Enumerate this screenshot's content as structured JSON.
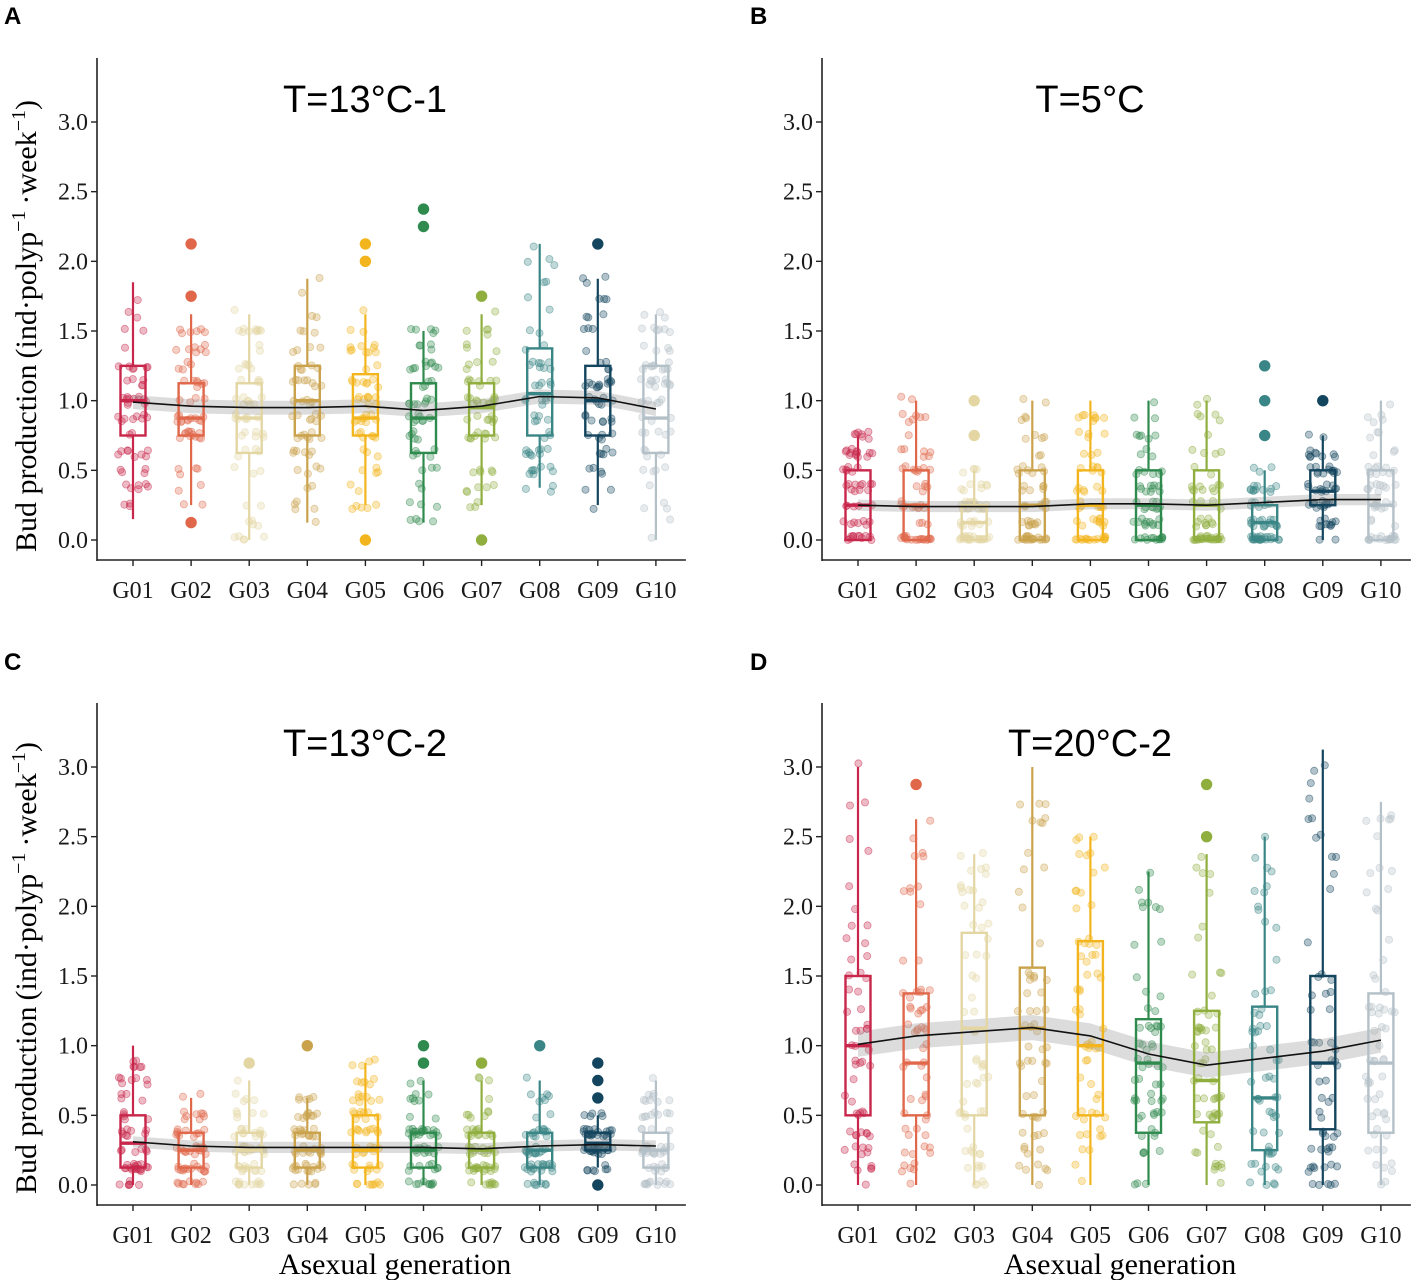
{
  "figure": {
    "ylabel_prefix": "Bud production",
    "ylabel_unit_main": "ind·polyp",
    "ylabel_unit_mid": "·week",
    "ylabel_exponent": "−1",
    "xlabel": "Asexual generation"
  },
  "generation_colors": [
    "#c8264a",
    "#e0674a",
    "#e3d6a3",
    "#c9a24b",
    "#f3b51d",
    "#2f8a4e",
    "#8fae3e",
    "#3a8585",
    "#14455e",
    "#b3c0c7"
  ],
  "chart_data": [
    {
      "panel_label": "A",
      "title": "T=13°C-1",
      "type": "box",
      "categories": [
        "G01",
        "G02",
        "G03",
        "G04",
        "G05",
        "G06",
        "G07",
        "G08",
        "G09",
        "G10"
      ],
      "ylim": [
        -0.1,
        3.45
      ],
      "yticks": [
        "0.0",
        "0.5",
        "1.0",
        "1.5",
        "2.0",
        "2.5",
        "3.0"
      ],
      "boxes": [
        {
          "q1": 0.75,
          "median": 1.0,
          "q3": 1.25,
          "whisker_low": 0.15,
          "whisker_high": 1.85,
          "outliers": []
        },
        {
          "q1": 0.75,
          "median": 0.875,
          "q3": 1.125,
          "whisker_low": 0.25,
          "whisker_high": 1.62,
          "outliers": [
            2.125,
            1.75,
            0.125
          ]
        },
        {
          "q1": 0.625,
          "median": 0.875,
          "q3": 1.125,
          "whisker_low": 0.0,
          "whisker_high": 1.62,
          "outliers": []
        },
        {
          "q1": 0.75,
          "median": 1.0,
          "q3": 1.25,
          "whisker_low": 0.125,
          "whisker_high": 1.875,
          "outliers": []
        },
        {
          "q1": 0.75,
          "median": 0.875,
          "q3": 1.19,
          "whisker_low": 0.25,
          "whisker_high": 1.62,
          "outliers": [
            2.125,
            2.0,
            0.0
          ]
        },
        {
          "q1": 0.625,
          "median": 0.875,
          "q3": 1.125,
          "whisker_low": 0.125,
          "whisker_high": 1.5,
          "outliers": [
            2.375,
            2.25
          ]
        },
        {
          "q1": 0.75,
          "median": 0.95,
          "q3": 1.125,
          "whisker_low": 0.25,
          "whisker_high": 1.62,
          "outliers": [
            1.75,
            0.0
          ]
        },
        {
          "q1": 0.75,
          "median": 1.05,
          "q3": 1.375,
          "whisker_low": 0.375,
          "whisker_high": 2.125,
          "outliers": []
        },
        {
          "q1": 0.75,
          "median": 1.0,
          "q3": 1.25,
          "whisker_low": 0.25,
          "whisker_high": 1.875,
          "outliers": [
            2.125
          ]
        },
        {
          "q1": 0.625,
          "median": 0.875,
          "q3": 1.25,
          "whisker_low": 0.0,
          "whisker_high": 1.62,
          "outliers": []
        }
      ],
      "trend": [
        0.99,
        0.96,
        0.95,
        0.95,
        0.96,
        0.93,
        0.96,
        1.03,
        1.02,
        0.94
      ],
      "trend_band": 0.05
    },
    {
      "panel_label": "B",
      "title": "T=5°C",
      "type": "box",
      "categories": [
        "G01",
        "G02",
        "G03",
        "G04",
        "G05",
        "G06",
        "G07",
        "G08",
        "G09",
        "G10"
      ],
      "ylim": [
        -0.1,
        3.45
      ],
      "yticks": [
        "0.0",
        "0.5",
        "1.0",
        "1.5",
        "2.0",
        "2.5",
        "3.0"
      ],
      "boxes": [
        {
          "q1": 0.0,
          "median": 0.25,
          "q3": 0.5,
          "whisker_low": 0.0,
          "whisker_high": 0.75,
          "outliers": []
        },
        {
          "q1": 0.0,
          "median": 0.25,
          "q3": 0.5,
          "whisker_low": 0.0,
          "whisker_high": 1.0,
          "outliers": []
        },
        {
          "q1": 0.0,
          "median": 0.125,
          "q3": 0.25,
          "whisker_low": 0.0,
          "whisker_high": 0.5,
          "outliers": [
            1.0,
            0.75
          ]
        },
        {
          "q1": 0.0,
          "median": 0.25,
          "q3": 0.5,
          "whisker_low": 0.0,
          "whisker_high": 1.0,
          "outliers": []
        },
        {
          "q1": 0.0,
          "median": 0.25,
          "q3": 0.5,
          "whisker_low": 0.0,
          "whisker_high": 1.0,
          "outliers": []
        },
        {
          "q1": 0.0,
          "median": 0.25,
          "q3": 0.5,
          "whisker_low": 0.0,
          "whisker_high": 1.0,
          "outliers": []
        },
        {
          "q1": 0.0,
          "median": 0.25,
          "q3": 0.5,
          "whisker_low": 0.0,
          "whisker_high": 1.0,
          "outliers": []
        },
        {
          "q1": 0.0,
          "median": 0.125,
          "q3": 0.25,
          "whisker_low": 0.0,
          "whisker_high": 0.5,
          "outliers": [
            1.25,
            1.0,
            0.75
          ]
        },
        {
          "q1": 0.25,
          "median": 0.35,
          "q3": 0.5,
          "whisker_low": 0.0,
          "whisker_high": 0.75,
          "outliers": [
            1.0
          ]
        },
        {
          "q1": 0.0,
          "median": 0.25,
          "q3": 0.5,
          "whisker_low": 0.0,
          "whisker_high": 1.0,
          "outliers": []
        }
      ],
      "trend": [
        0.25,
        0.24,
        0.24,
        0.24,
        0.26,
        0.26,
        0.25,
        0.27,
        0.29,
        0.29
      ],
      "trend_band": 0.04
    },
    {
      "panel_label": "C",
      "title": "T=13°C-2",
      "type": "box",
      "categories": [
        "G01",
        "G02",
        "G03",
        "G04",
        "G05",
        "G06",
        "G07",
        "G08",
        "G09",
        "G10"
      ],
      "ylim": [
        -0.1,
        3.45
      ],
      "yticks": [
        "0.0",
        "0.5",
        "1.0",
        "1.5",
        "2.0",
        "2.5",
        "3.0"
      ],
      "boxes": [
        {
          "q1": 0.125,
          "median": 0.3,
          "q3": 0.5,
          "whisker_low": 0.0,
          "whisker_high": 1.0,
          "outliers": []
        },
        {
          "q1": 0.125,
          "median": 0.25,
          "q3": 0.375,
          "whisker_low": 0.0,
          "whisker_high": 0.625,
          "outliers": []
        },
        {
          "q1": 0.125,
          "median": 0.25,
          "q3": 0.375,
          "whisker_low": 0.0,
          "whisker_high": 0.75,
          "outliers": [
            0.875
          ]
        },
        {
          "q1": 0.125,
          "median": 0.25,
          "q3": 0.375,
          "whisker_low": 0.0,
          "whisker_high": 0.625,
          "outliers": [
            1.0
          ]
        },
        {
          "q1": 0.125,
          "median": 0.25,
          "q3": 0.5,
          "whisker_low": 0.0,
          "whisker_high": 0.875,
          "outliers": []
        },
        {
          "q1": 0.125,
          "median": 0.25,
          "q3": 0.375,
          "whisker_low": 0.0,
          "whisker_high": 0.75,
          "outliers": [
            1.0,
            0.875
          ]
        },
        {
          "q1": 0.125,
          "median": 0.25,
          "q3": 0.375,
          "whisker_low": 0.0,
          "whisker_high": 0.75,
          "outliers": [
            0.875
          ]
        },
        {
          "q1": 0.125,
          "median": 0.25,
          "q3": 0.375,
          "whisker_low": 0.0,
          "whisker_high": 0.75,
          "outliers": [
            1.0
          ]
        },
        {
          "q1": 0.25,
          "median": 0.3,
          "q3": 0.375,
          "whisker_low": 0.125,
          "whisker_high": 0.5,
          "outliers": [
            0.875,
            0.75,
            0.625,
            0.0
          ]
        },
        {
          "q1": 0.125,
          "median": 0.25,
          "q3": 0.375,
          "whisker_low": 0.0,
          "whisker_high": 0.75,
          "outliers": []
        }
      ],
      "trend": [
        0.31,
        0.28,
        0.27,
        0.27,
        0.27,
        0.27,
        0.26,
        0.28,
        0.29,
        0.28
      ],
      "trend_band": 0.04
    },
    {
      "panel_label": "D",
      "title": "T=20°C-2",
      "type": "box",
      "categories": [
        "G01",
        "G02",
        "G03",
        "G04",
        "G05",
        "G06",
        "G07",
        "G08",
        "G09",
        "G10"
      ],
      "ylim": [
        -0.1,
        3.45
      ],
      "yticks": [
        "0.0",
        "0.5",
        "1.0",
        "1.5",
        "2.0",
        "2.5",
        "3.0"
      ],
      "boxes": [
        {
          "q1": 0.5,
          "median": 1.0,
          "q3": 1.5,
          "whisker_low": 0.0,
          "whisker_high": 3.0,
          "outliers": []
        },
        {
          "q1": 0.5,
          "median": 0.875,
          "q3": 1.375,
          "whisker_low": 0.0,
          "whisker_high": 2.625,
          "outliers": [
            2.875
          ]
        },
        {
          "q1": 0.5,
          "median": 1.125,
          "q3": 1.81,
          "whisker_low": 0.0,
          "whisker_high": 2.375,
          "outliers": []
        },
        {
          "q1": 0.5,
          "median": 1.125,
          "q3": 1.56,
          "whisker_low": 0.0,
          "whisker_high": 3.0,
          "outliers": []
        },
        {
          "q1": 0.5,
          "median": 1.0,
          "q3": 1.75,
          "whisker_low": 0.0,
          "whisker_high": 2.5,
          "outliers": []
        },
        {
          "q1": 0.375,
          "median": 0.875,
          "q3": 1.19,
          "whisker_low": 0.0,
          "whisker_high": 2.25,
          "outliers": []
        },
        {
          "q1": 0.45,
          "median": 0.75,
          "q3": 1.25,
          "whisker_low": 0.0,
          "whisker_high": 2.375,
          "outliers": [
            2.875,
            2.5
          ]
        },
        {
          "q1": 0.25,
          "median": 0.625,
          "q3": 1.28,
          "whisker_low": 0.0,
          "whisker_high": 2.5,
          "outliers": []
        },
        {
          "q1": 0.4,
          "median": 0.875,
          "q3": 1.5,
          "whisker_low": 0.0,
          "whisker_high": 3.125,
          "outliers": []
        },
        {
          "q1": 0.375,
          "median": 0.875,
          "q3": 1.375,
          "whisker_low": 0.0,
          "whisker_high": 2.75,
          "outliers": []
        }
      ],
      "trend": [
        1.01,
        1.07,
        1.1,
        1.13,
        1.07,
        0.94,
        0.86,
        0.91,
        0.96,
        1.04
      ],
      "trend_band": 0.09
    }
  ]
}
